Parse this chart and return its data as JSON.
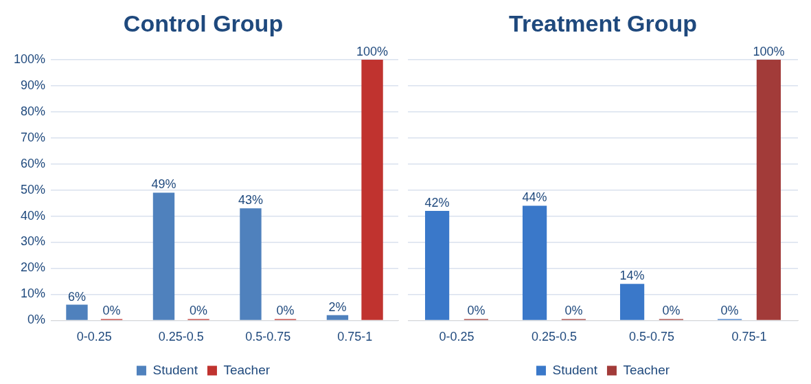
{
  "chart_data": [
    {
      "type": "bar",
      "title": "Control Group",
      "categories": [
        "0-0.25",
        "0.25-0.5",
        "0.5-0.75",
        "0.75-1"
      ],
      "series": [
        {
          "name": "Student",
          "color": "#4f81bd",
          "values": [
            6,
            49,
            43,
            2
          ],
          "value_labels": [
            "6%",
            "49%",
            "43%",
            "2%"
          ]
        },
        {
          "name": "Teacher",
          "color": "#c0332f",
          "values": [
            0,
            0,
            0,
            100
          ],
          "value_labels": [
            "0%",
            "0%",
            "0%",
            "100%"
          ]
        }
      ],
      "ylim": [
        0,
        100
      ],
      "yticks": [
        {
          "value": 0,
          "label": "0%"
        },
        {
          "value": 10,
          "label": "10%"
        },
        {
          "value": 20,
          "label": "20%"
        },
        {
          "value": 30,
          "label": "30%"
        },
        {
          "value": 40,
          "label": "40%"
        },
        {
          "value": 50,
          "label": "50%"
        },
        {
          "value": 60,
          "label": "60%"
        },
        {
          "value": 70,
          "label": "70%"
        },
        {
          "value": 80,
          "label": "80%"
        },
        {
          "value": 90,
          "label": "90%"
        },
        {
          "value": 100,
          "label": "100%"
        }
      ],
      "grid": "y",
      "legend": "bottom"
    },
    {
      "type": "bar",
      "title": "Treatment Group",
      "categories": [
        "0-0.25",
        "0.25-0.5",
        "0.5-0.75",
        "0.75-1"
      ],
      "series": [
        {
          "name": "Student",
          "color": "#3a78c9",
          "values": [
            42,
            44,
            14,
            0
          ],
          "value_labels": [
            "42%",
            "44%",
            "14%",
            "0%"
          ]
        },
        {
          "name": "Teacher",
          "color": "#a23b39",
          "values": [
            0,
            0,
            0,
            100
          ],
          "value_labels": [
            "0%",
            "0%",
            "0%",
            "100%"
          ]
        }
      ],
      "ylim": [
        0,
        100
      ],
      "yticks": [
        {
          "value": 0,
          "label": null
        },
        {
          "value": 10,
          "label": null
        },
        {
          "value": 20,
          "label": null
        },
        {
          "value": 30,
          "label": null
        },
        {
          "value": 40,
          "label": null
        },
        {
          "value": 50,
          "label": null
        },
        {
          "value": 60,
          "label": null
        },
        {
          "value": 70,
          "label": null
        },
        {
          "value": 80,
          "label": null
        },
        {
          "value": 90,
          "label": null
        },
        {
          "value": 100,
          "label": null
        }
      ],
      "grid": "y",
      "legend": "bottom",
      "tick_labels": "x"
    }
  ]
}
